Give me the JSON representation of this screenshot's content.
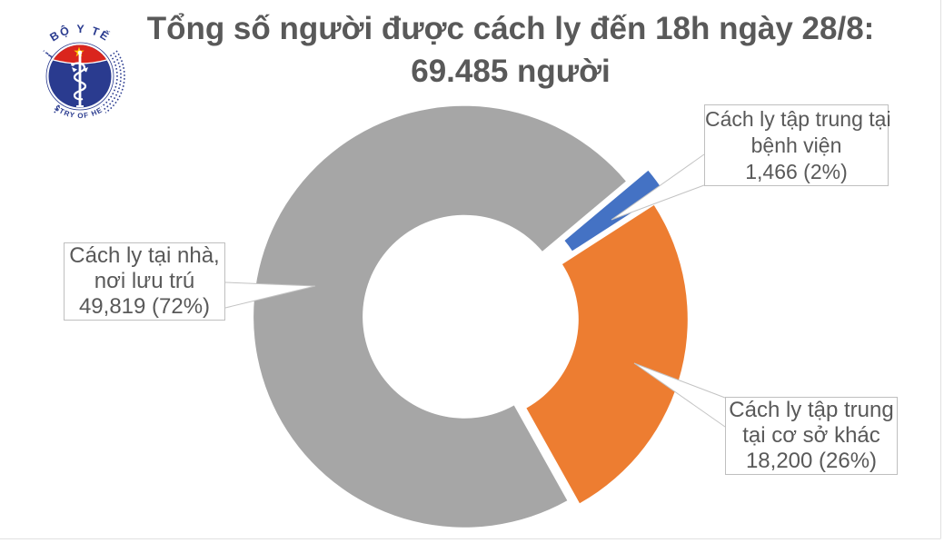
{
  "title": "Tổng số người được cách ly đến 18h ngày 28/8: 69.485 người",
  "logo": {
    "top_text": "BỘ Y TẾ",
    "bottom_text": "MINISTRY OF HEALTH",
    "colors": {
      "blue": "#2A3B8F",
      "red": "#DA251D",
      "star_yellow": "#FFCB05"
    }
  },
  "chart_data": {
    "type": "pie",
    "subtype": "doughnut",
    "title": "Tổng số người được cách ly đến 18h ngày 28/8: 69.485 người",
    "total": 69485,
    "rotation_deg": 50,
    "legend_position": "none",
    "slices": [
      {
        "id": "benh-vien",
        "label": "Cách ly tập trung tại bệnh viện",
        "value": 1466,
        "pct": 2,
        "display": "1,466 (2%)",
        "color": "#4472C4",
        "explode": 22
      },
      {
        "id": "co-so-khac",
        "label": "Cách ly tập trung tại cơ sở khác",
        "value": 18200,
        "pct": 26,
        "display": "18,200 (26%)",
        "color": "#ED7D31",
        "explode": 7
      },
      {
        "id": "tai-nha",
        "label": "Cách ly tại nhà, nơi lưu trú",
        "value": 49819,
        "pct": 72,
        "display": "49,819 (72%)",
        "color": "#A6A6A6",
        "explode": 7
      }
    ]
  },
  "callouts": [
    {
      "id": "hospital",
      "lines": [
        "Cách ly tập trung tại",
        "bệnh viện",
        "1,466 (2%)"
      ]
    },
    {
      "id": "other",
      "lines": [
        "Cách ly tập trung",
        "tại cơ sở khác",
        "18,200 (26%)"
      ]
    },
    {
      "id": "home",
      "lines": [
        "Cách ly tại nhà,",
        "nơi lưu trú",
        "49,819 (72%)"
      ]
    }
  ]
}
